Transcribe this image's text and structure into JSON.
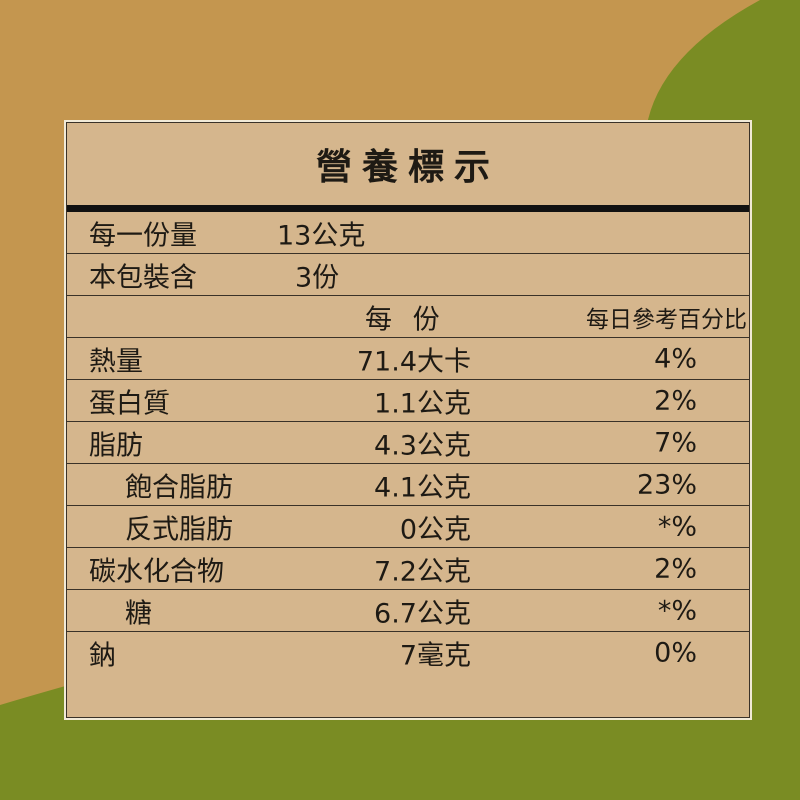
{
  "colors": {
    "background_tan": "#c4964f",
    "background_green": "#7a8c23",
    "label_fill": "#d5b68d"
  },
  "title": "營養標示",
  "serving_size": {
    "label": "每一份量",
    "value": "13公克"
  },
  "servings_per_package": {
    "label": "本包裝含",
    "value": "3份"
  },
  "header": {
    "per_serving": "每 份",
    "daily_value": "每日參考百分比"
  },
  "nutrients": [
    {
      "name": "熱量",
      "amount": "71.4大卡",
      "percent": "4%"
    },
    {
      "name": "蛋白質",
      "amount": "1.1公克",
      "percent": "2%"
    },
    {
      "name": "脂肪",
      "amount": "4.3公克",
      "percent": "7%"
    },
    {
      "name": "飽合脂肪",
      "amount": "4.1公克",
      "percent": "23%"
    },
    {
      "name": "反式脂肪",
      "amount": "0公克",
      "percent": "*%"
    },
    {
      "name": "碳水化合物",
      "amount": "7.2公克",
      "percent": "2%"
    },
    {
      "name": "糖",
      "amount": "6.7公克",
      "percent": "*%"
    },
    {
      "name": "鈉",
      "amount": "7毫克",
      "percent": "0%"
    }
  ]
}
